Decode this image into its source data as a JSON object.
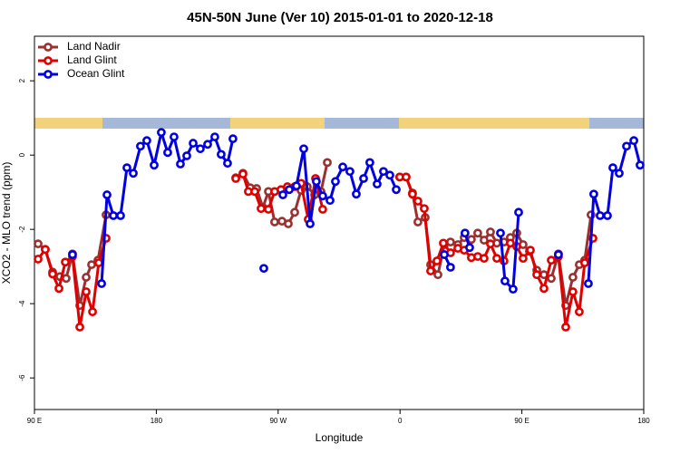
{
  "chart_data": {
    "type": "line",
    "title": "45N-50N June (Ver 10)   2015-01-01 to 2020-12-18",
    "x_label": "Longitude",
    "y_label": "XCO2 - MLO trend (ppm)",
    "xlim": [
      90,
      540
    ],
    "ylim": [
      -6.85,
      3.2
    ],
    "xticks": [
      {
        "value": 90,
        "label": "90 E"
      },
      180,
      {
        "value": 270,
        "label": "90 W"
      },
      0,
      {
        "value": 450,
        "label": "90 E"
      },
      {
        "value": 540,
        "label": "180"
      }
    ],
    "yticks": [
      -6,
      -4,
      -2,
      0,
      2
    ],
    "legend": "top-left",
    "series": [
      {
        "name": "Land Nadir",
        "color": "#9b3030",
        "x": [
          92.7,
          98,
          103.4,
          108.8,
          113.4,
          118.1,
          123.5,
          128.2,
          132.2,
          136.9,
          142.9,
          null,
          238.7,
          244,
          249.4,
          254.1,
          258.7,
          262.8,
          267.4,
          272.8,
          277.5,
          282.2,
          286.9,
          291.5,
          296.9,
          301.6,
          306.3,
          null,
          359.8,
          364.5,
          369.2,
          373.2,
          378.6,
          382.6,
          388,
          392.7,
          397.3,
          402.7,
          407.4,
          412.7,
          417.4,
          422.1,
          426.8,
          431.5,
          436.8,
          441.5,
          446.2,
          450.9,
          455.6,
          461,
          466.3,
          471.7,
          477,
          482.4,
          487.7,
          492.4,
          496.4,
          501.1
        ],
        "values": [
          -2.39,
          -2.54,
          -3.15,
          -3.27,
          -3.32,
          -2.66,
          -4.05,
          -3.29,
          -2.95,
          -2.83,
          -1.61,
          null,
          -0.61,
          -0.49,
          -0.88,
          -0.9,
          -1.41,
          -0.98,
          -1.8,
          -1.78,
          -1.85,
          -1.54,
          -0.95,
          -0.85,
          -1.07,
          -0.98,
          -0.2,
          null,
          -0.59,
          -0.59,
          -1.02,
          -1.8,
          -1.68,
          -2.95,
          -3.22,
          -2.41,
          -2.34,
          -2.41,
          -2.22,
          -2.27,
          -2.1,
          -2.29,
          -2.07,
          -2.37,
          -2.34,
          -2.22,
          -2.1,
          -2.41,
          -2.59,
          -3.1,
          -3.22,
          -3.32,
          -2.66,
          -4.05,
          -3.29,
          -2.95,
          -2.83,
          -1.61
        ]
      },
      {
        "name": "Land Glint",
        "color": "#e00000",
        "x": [
          92.7,
          98,
          103.4,
          108.1,
          112.8,
          118.1,
          123.5,
          128.2,
          132.9,
          137.5,
          142.9,
          null,
          238.7,
          244,
          248,
          252.7,
          257.4,
          262.8,
          267.4,
          272.1,
          276.8,
          282.2,
          286.9,
          292.2,
          297.6,
          302.9,
          null,
          359.8,
          364.5,
          369.2,
          373.2,
          377.9,
          382.6,
          387.3,
          392,
          397.3,
          402.7,
          407.4,
          412.7,
          417.4,
          422.1,
          426.8,
          431.5,
          436.8,
          441.5,
          446.2,
          450.9,
          456.3,
          461,
          466.3,
          471.7,
          477,
          482.4,
          487.7,
          492.4,
          496.4,
          502.5
        ],
        "values": [
          -2.8,
          -2.54,
          -3.2,
          -3.59,
          -2.88,
          -2.73,
          -4.63,
          -3.68,
          -4.22,
          -2.9,
          -2.24,
          null,
          -0.63,
          -0.51,
          -0.98,
          -0.98,
          -1.44,
          -1.46,
          -0.98,
          -0.93,
          -0.85,
          -0.85,
          -0.76,
          -1.73,
          -0.63,
          -1.46,
          null,
          -0.59,
          -0.59,
          -1.05,
          -1.24,
          -1.44,
          -3.12,
          -2.85,
          -2.37,
          -2.63,
          -2.51,
          -2.56,
          -2.76,
          -2.73,
          -2.78,
          -2.39,
          -2.78,
          -2.85,
          -2.37,
          -2.46,
          -2.78,
          -2.56,
          -3.22,
          -3.59,
          -2.83,
          -2.73,
          -4.63,
          -3.68,
          -4.22,
          -2.9,
          -2.24
        ]
      },
      {
        "name": "Ocean Glint",
        "color": "#0000e0",
        "x": [
          118.1,
          null,
          139.6,
          143.6,
          148.3,
          153.6,
          158.3,
          163,
          168.3,
          173,
          178.4,
          183.7,
          188.4,
          193.1,
          197.8,
          202.5,
          207.2,
          212.5,
          217.9,
          223.2,
          227.9,
          232.6,
          236.6,
          null,
          259.4,
          null,
          273.5,
          278.2,
          283.5,
          288.9,
          293.6,
          298.2,
          302.9,
          308.3,
          312.3,
          317.7,
          323,
          327.7,
          333.1,
          337.7,
          343.1,
          347.8,
          352.5,
          357.2,
          null,
          392.7,
          397.3,
          null,
          408,
          411.4,
          null,
          434.2,
          437.5,
          443.5,
          447.6,
          null,
          477,
          null,
          499.1,
          503.1,
          507.8,
          513.2,
          517.2,
          521.9,
          527.3,
          532.7,
          537.3
        ],
        "values": [
          -2.68,
          null,
          -3.46,
          -1.07,
          -1.63,
          -1.63,
          -0.34,
          -0.49,
          0.24,
          0.39,
          -0.27,
          0.61,
          0.07,
          0.49,
          -0.24,
          -0.02,
          0.32,
          0.17,
          0.29,
          0.49,
          0.02,
          -0.22,
          0.44,
          null,
          -3.05,
          null,
          -1.07,
          -0.93,
          -0.83,
          0.17,
          -1.85,
          -0.71,
          -1.1,
          -1.22,
          -0.71,
          -0.32,
          -0.44,
          -1.05,
          -0.63,
          -0.2,
          -0.78,
          -0.44,
          -0.54,
          -0.93,
          null,
          -2.68,
          -3.02,
          null,
          -2.1,
          -2.49,
          null,
          -2.1,
          -3.39,
          -3.61,
          -1.54,
          null,
          -2.68,
          null,
          -3.46,
          -1.05,
          -1.63,
          -1.63,
          -0.34,
          -0.49,
          0.24,
          0.39,
          -0.27
        ]
      }
    ]
  }
}
